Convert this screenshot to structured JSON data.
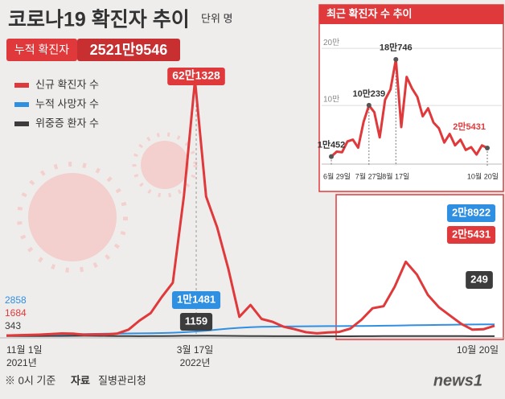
{
  "title": "코로나19 확진자 추이",
  "unit": "단위 명",
  "cumulative": {
    "label": "누적 확진자",
    "value": 25219546,
    "value_label": "2521만9546"
  },
  "source": {
    "note": "※ 0시 기준",
    "label": "자료",
    "name": "질병관리청"
  },
  "logo": "news1",
  "chart_data": [
    {
      "type": "line",
      "legend": "upper left",
      "ylim": [
        0,
        650000
      ],
      "categories": [
        "11월 1일",
        null,
        null,
        null,
        null,
        null,
        null,
        null,
        null,
        null,
        null,
        null,
        null,
        null,
        null,
        null,
        null,
        "3월 17일",
        null,
        null,
        null,
        null,
        null,
        null,
        null,
        null,
        null,
        null,
        null,
        null,
        null,
        null,
        null,
        null,
        null,
        null,
        null,
        null,
        null,
        null,
        null,
        null,
        null,
        null,
        "10월 20일"
      ],
      "annotations": [
        {
          "text": "2021년",
          "category": 0
        },
        {
          "text": "2022년",
          "category": 17
        }
      ],
      "series": [
        {
          "name": "신규 확진자 수",
          "color": "#e0393b",
          "values": [
            1684,
            2400,
            3187,
            4000,
            5300,
            6900,
            6200,
            3800,
            4400,
            4200,
            6600,
            16000,
            38000,
            56000,
            95000,
            130000,
            340000,
            621328,
            339000,
            264000,
            164000,
            47000,
            76000,
            42000,
            35000,
            23000,
            17000,
            9800,
            7000,
            9300,
            10452,
            18500,
            40000,
            68000,
            73000,
            120000,
            180746,
            150000,
            100000,
            70000,
            50000,
            30000,
            16000,
            17000,
            25431
          ],
          "value_labels": [
            "1684",
            null,
            null,
            null,
            null,
            null,
            null,
            null,
            null,
            null,
            null,
            null,
            null,
            null,
            null,
            null,
            null,
            "62만1328",
            null,
            null,
            null,
            null,
            null,
            null,
            null,
            null,
            null,
            null,
            null,
            null,
            null,
            null,
            null,
            null,
            null,
            null,
            null,
            null,
            null,
            null,
            null,
            null,
            null,
            null,
            "2만5431"
          ]
        },
        {
          "name": "누적 사망자 수",
          "color": "#2f8fe0",
          "values": [
            2858,
            3000,
            3300,
            3700,
            4100,
            4600,
            5000,
            5500,
            5900,
            6200,
            6500,
            6800,
            7100,
            7400,
            7900,
            8500,
            9700,
            11481,
            13500,
            16000,
            18500,
            20500,
            21900,
            22800,
            23300,
            23700,
            24000,
            24200,
            24400,
            24500,
            24600,
            24700,
            24900,
            25200,
            25600,
            26000,
            26400,
            26900,
            27200,
            27600,
            28000,
            28300,
            28500,
            28700,
            28922
          ],
          "value_labels": [
            "2858",
            null,
            null,
            null,
            null,
            null,
            null,
            null,
            null,
            null,
            null,
            null,
            null,
            null,
            null,
            null,
            null,
            "1만1481",
            null,
            null,
            null,
            null,
            null,
            null,
            null,
            null,
            null,
            null,
            null,
            null,
            null,
            null,
            null,
            null,
            null,
            null,
            null,
            null,
            null,
            null,
            null,
            null,
            null,
            null,
            "2만8922"
          ]
        },
        {
          "name": "위중증 환자 수",
          "color": "#3c3c3c",
          "values": [
            343,
            460,
            520,
            630,
            730,
            850,
            1010,
            1080,
            1000,
            800,
            530,
            400,
            280,
            310,
            480,
            760,
            1100,
            1159,
            1270,
            1090,
            900,
            700,
            470,
            350,
            290,
            250,
            200,
            130,
            100,
            70,
            60,
            80,
            150,
            250,
            350,
            460,
            530,
            570,
            560,
            480,
            420,
            330,
            250,
            240,
            249
          ],
          "value_labels": [
            "343",
            null,
            null,
            null,
            null,
            null,
            null,
            null,
            null,
            null,
            null,
            null,
            null,
            null,
            null,
            null,
            null,
            "1159",
            null,
            null,
            null,
            null,
            null,
            null,
            null,
            null,
            null,
            null,
            null,
            null,
            null,
            null,
            null,
            null,
            null,
            null,
            null,
            null,
            null,
            null,
            null,
            null,
            null,
            null,
            "249"
          ]
        }
      ]
    },
    {
      "type": "line",
      "title": "최근 확진자 수 추이",
      "ylim": [
        0,
        220000
      ],
      "yticks": [
        {
          "value": 100000,
          "label": "10만"
        },
        {
          "value": 200000,
          "label": "20만"
        }
      ],
      "categories": [
        "6월 29일",
        null,
        null,
        null,
        null,
        null,
        null,
        "7월 27일",
        null,
        null,
        null,
        null,
        "8월 17일",
        null,
        null,
        null,
        null,
        null,
        null,
        null,
        null,
        null,
        null,
        null,
        null,
        null,
        null,
        null,
        null,
        "10월 20일"
      ],
      "series": [
        {
          "name": "신규 확진자 수",
          "color": "#e0393b",
          "values": [
            10452,
            19000,
            18000,
            37000,
            40000,
            26000,
            71000,
            100239,
            88000,
            44000,
            110000,
            128000,
            180746,
            62000,
            150000,
            130000,
            115000,
            81000,
            95000,
            70000,
            60000,
            35000,
            50000,
            30000,
            40000,
            22000,
            27000,
            14000,
            30000,
            25431
          ],
          "value_labels": [
            "1만452",
            null,
            null,
            null,
            null,
            null,
            null,
            "10만239",
            null,
            null,
            null,
            null,
            "18만746",
            null,
            null,
            null,
            null,
            null,
            null,
            null,
            null,
            null,
            null,
            null,
            null,
            null,
            null,
            null,
            null,
            "2만5431"
          ]
        }
      ]
    }
  ]
}
